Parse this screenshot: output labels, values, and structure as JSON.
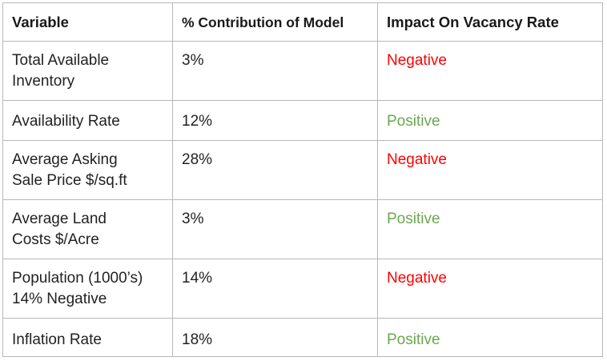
{
  "table": {
    "headers": [
      "Variable",
      "% Contribution of Model",
      "Impact On Vacancy Rate"
    ],
    "rows": [
      {
        "variable_lines": [
          "Total Available",
          "Inventory"
        ],
        "contribution": "3%",
        "impact": "Negative",
        "impact_color": "#ff0000"
      },
      {
        "variable_lines": [
          "Availability Rate"
        ],
        "contribution": "12%",
        "impact": "Positive",
        "impact_color": "#6aa84f"
      },
      {
        "variable_lines": [
          "Average Asking",
          "Sale Price $/sq.ft"
        ],
        "contribution": "28%",
        "impact": "Negative",
        "impact_color": "#ff0000"
      },
      {
        "variable_lines": [
          "Average Land",
          "Costs $/Acre"
        ],
        "contribution": "3%",
        "impact": "Positive",
        "impact_color": "#6aa84f"
      },
      {
        "variable_lines": [
          "Population (1000’s)",
          "14% Negative"
        ],
        "contribution": "14%",
        "impact": "Negative",
        "impact_color": "#ff0000"
      },
      {
        "variable_lines": [
          "Inflation Rate"
        ],
        "contribution": "18%",
        "impact": "Positive",
        "impact_color": "#6aa84f"
      }
    ]
  }
}
